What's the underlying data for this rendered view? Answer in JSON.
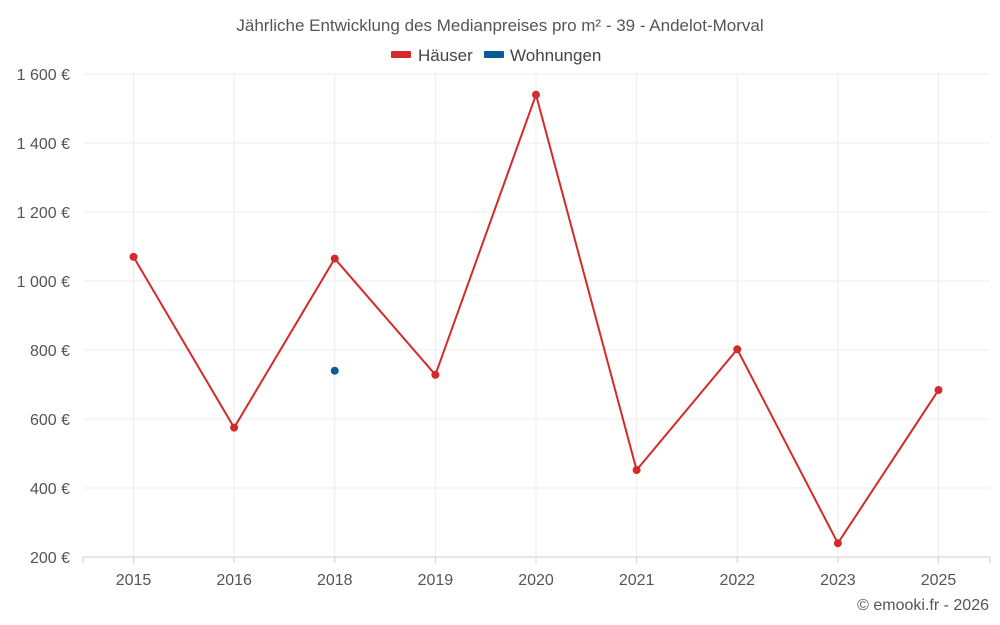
{
  "chart_data": {
    "type": "line",
    "title": "Jährliche Entwicklung des Medianpreises pro m² - 39 - Andelot-Morval",
    "categories": [
      "2015",
      "2016",
      "2018",
      "2019",
      "2020",
      "2021",
      "2022",
      "2023",
      "2025"
    ],
    "series": [
      {
        "name": "Häuser",
        "color": "#d42a2a",
        "values": [
          1070,
          575,
          1065,
          728,
          1540,
          452,
          802,
          240,
          684
        ]
      },
      {
        "name": "Wohnungen",
        "color": "#0a5c99",
        "values": [
          null,
          null,
          740,
          null,
          null,
          null,
          null,
          null,
          null
        ]
      }
    ],
    "ylim": [
      200,
      1600
    ],
    "yticks": [
      200,
      400,
      600,
      800,
      1000,
      1200,
      1400,
      1600
    ],
    "ytick_labels": [
      "200 €",
      "400 €",
      "600 €",
      "800 €",
      "1 000 €",
      "1 200 €",
      "1 400 €",
      "1 600 €"
    ],
    "xlabel": "",
    "ylabel": "",
    "grid": true,
    "legend": "top-center"
  },
  "credit": "© emooki.fr - 2026"
}
